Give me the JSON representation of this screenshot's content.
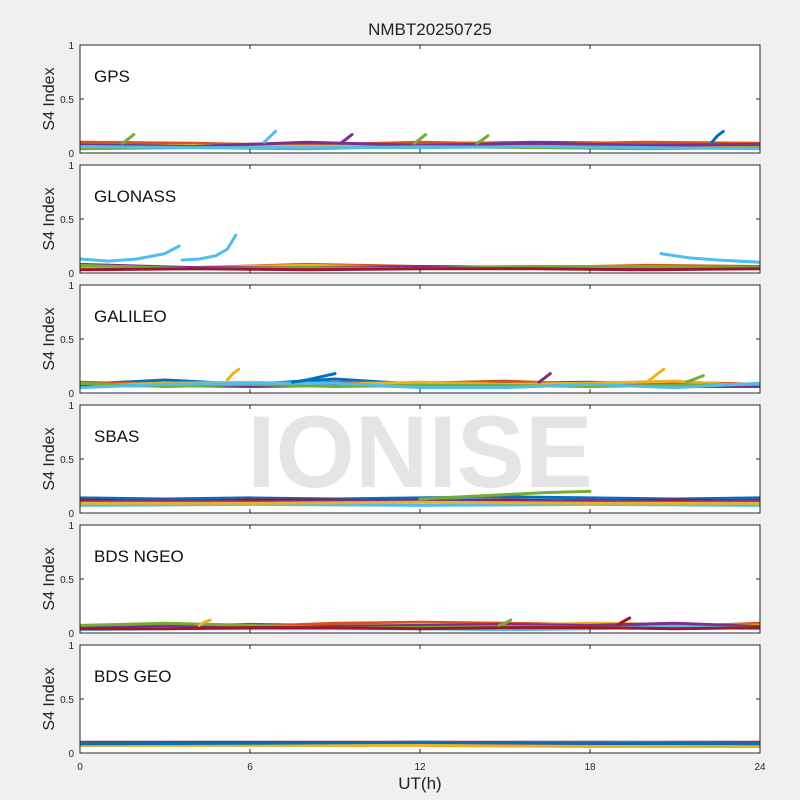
{
  "figure": {
    "title": "NMBT20250725",
    "xlabel": "UT(h)",
    "watermark": "IONISE",
    "x_ticks": [
      0,
      6,
      12,
      18,
      24
    ],
    "xlim": [
      0,
      24
    ],
    "colors": [
      "#0072bd",
      "#d95319",
      "#edb120",
      "#7e2f8e",
      "#77ac30",
      "#4dbeee",
      "#a2142f"
    ]
  },
  "chart_data": [
    {
      "type": "line",
      "panel_label": "GPS",
      "ylabel": "S4 Index",
      "ylim": [
        0,
        1
      ],
      "y_ticks": [
        0,
        0.5,
        1
      ],
      "series": [
        {
          "color_index": 0,
          "x": [
            0,
            4,
            8,
            12,
            16,
            20,
            24
          ],
          "y": [
            0.08,
            0.07,
            0.09,
            0.08,
            0.1,
            0.09,
            0.08
          ]
        },
        {
          "color_index": 1,
          "x": [
            0,
            4,
            8,
            12,
            16,
            20,
            24
          ],
          "y": [
            0.1,
            0.09,
            0.07,
            0.1,
            0.08,
            0.1,
            0.09
          ]
        },
        {
          "color_index": 2,
          "x": [
            0,
            4,
            8,
            12,
            16,
            20,
            24
          ],
          "y": [
            0.05,
            0.07,
            0.06,
            0.07,
            0.06,
            0.06,
            0.05
          ]
        },
        {
          "color_index": 3,
          "x": [
            0,
            4,
            8,
            12,
            16,
            20,
            24
          ],
          "y": [
            0.07,
            0.06,
            0.1,
            0.07,
            0.09,
            0.07,
            0.08
          ]
        },
        {
          "color_index": 4,
          "x": [
            0,
            4,
            8,
            12,
            16,
            20,
            24
          ],
          "y": [
            0.04,
            0.05,
            0.04,
            0.06,
            0.05,
            0.04,
            0.05
          ]
        },
        {
          "color_index": 5,
          "x": [
            0,
            4,
            8,
            12,
            16,
            20,
            24
          ],
          "y": [
            0.06,
            0.05,
            0.05,
            0.05,
            0.06,
            0.05,
            0.04
          ]
        },
        {
          "color_index": 0,
          "x": [
            22.3,
            22.5,
            22.7
          ],
          "y": [
            0.1,
            0.16,
            0.2
          ]
        },
        {
          "color_index": 5,
          "x": [
            6.5,
            6.7,
            6.9
          ],
          "y": [
            0.1,
            0.15,
            0.2
          ]
        },
        {
          "color_index": 4,
          "x": [
            1.5,
            1.7,
            1.9
          ],
          "y": [
            0.09,
            0.13,
            0.17
          ]
        },
        {
          "color_index": 3,
          "x": [
            9.2,
            9.4,
            9.6
          ],
          "y": [
            0.09,
            0.13,
            0.17
          ]
        },
        {
          "color_index": 4,
          "x": [
            11.8,
            12.0,
            12.2
          ],
          "y": [
            0.09,
            0.13,
            0.17
          ]
        },
        {
          "color_index": 4,
          "x": [
            14.0,
            14.2,
            14.4
          ],
          "y": [
            0.09,
            0.12,
            0.16
          ]
        }
      ]
    },
    {
      "type": "line",
      "panel_label": "GLONASS",
      "ylabel": "S4 Index",
      "ylim": [
        0,
        1
      ],
      "y_ticks": [
        0,
        0.5,
        1
      ],
      "series": [
        {
          "color_index": 5,
          "x": [
            0,
            1,
            2,
            3,
            3.5
          ],
          "y": [
            0.13,
            0.11,
            0.13,
            0.18,
            0.25
          ]
        },
        {
          "color_index": 5,
          "x": [
            3.6,
            4.2,
            4.8,
            5.2,
            5.5
          ],
          "y": [
            0.12,
            0.13,
            0.16,
            0.22,
            0.35
          ]
        },
        {
          "color_index": 5,
          "x": [
            20.5,
            21.5,
            22.5,
            24
          ],
          "y": [
            0.18,
            0.14,
            0.12,
            0.1
          ]
        },
        {
          "color_index": 0,
          "x": [
            0,
            4,
            8,
            12,
            16,
            20,
            24
          ],
          "y": [
            0.05,
            0.04,
            0.06,
            0.05,
            0.06,
            0.05,
            0.05
          ]
        },
        {
          "color_index": 1,
          "x": [
            0,
            4,
            8,
            12,
            16,
            20,
            24
          ],
          "y": [
            0.06,
            0.05,
            0.08,
            0.06,
            0.05,
            0.07,
            0.06
          ]
        },
        {
          "color_index": 2,
          "x": [
            0,
            4,
            8,
            12,
            16,
            20,
            24
          ],
          "y": [
            0.04,
            0.05,
            0.07,
            0.05,
            0.06,
            0.05,
            0.04
          ]
        },
        {
          "color_index": 3,
          "x": [
            0,
            4,
            8,
            12,
            16,
            20,
            24
          ],
          "y": [
            0.08,
            0.05,
            0.05,
            0.06,
            0.05,
            0.04,
            0.05
          ]
        },
        {
          "color_index": 4,
          "x": [
            0,
            4,
            8,
            12,
            16,
            20,
            24
          ],
          "y": [
            0.07,
            0.04,
            0.05,
            0.04,
            0.06,
            0.06,
            0.05
          ]
        },
        {
          "color_index": 6,
          "x": [
            0,
            4,
            8,
            12,
            16,
            20,
            24
          ],
          "y": [
            0.03,
            0.04,
            0.03,
            0.04,
            0.04,
            0.03,
            0.04
          ]
        }
      ]
    },
    {
      "type": "line",
      "panel_label": "GALILEO",
      "ylabel": "S4 Index",
      "ylim": [
        0,
        1
      ],
      "y_ticks": [
        0,
        0.5,
        1
      ],
      "series": [
        {
          "color_index": 0,
          "x": [
            0,
            3,
            6,
            9,
            12,
            15,
            18,
            21,
            24
          ],
          "y": [
            0.08,
            0.12,
            0.08,
            0.13,
            0.08,
            0.09,
            0.1,
            0.08,
            0.07
          ]
        },
        {
          "color_index": 1,
          "x": [
            0,
            3,
            6,
            9,
            12,
            15,
            18,
            21,
            24
          ],
          "y": [
            0.1,
            0.08,
            0.07,
            0.1,
            0.09,
            0.11,
            0.08,
            0.1,
            0.08
          ]
        },
        {
          "color_index": 2,
          "x": [
            0,
            3,
            6,
            9,
            12,
            15,
            18,
            21,
            24
          ],
          "y": [
            0.07,
            0.09,
            0.1,
            0.08,
            0.1,
            0.08,
            0.09,
            0.11,
            0.06
          ]
        },
        {
          "color_index": 3,
          "x": [
            0,
            3,
            6,
            9,
            12,
            15,
            18,
            21,
            24
          ],
          "y": [
            0.06,
            0.07,
            0.06,
            0.07,
            0.06,
            0.06,
            0.07,
            0.06,
            0.06
          ]
        },
        {
          "color_index": 4,
          "x": [
            0,
            3,
            6,
            9,
            12,
            15,
            18,
            21,
            24
          ],
          "y": [
            0.09,
            0.06,
            0.08,
            0.06,
            0.07,
            0.07,
            0.06,
            0.07,
            0.08
          ]
        },
        {
          "color_index": 5,
          "x": [
            0,
            3,
            6,
            9,
            12,
            15,
            18,
            21,
            24
          ],
          "y": [
            0.05,
            0.08,
            0.09,
            0.09,
            0.05,
            0.05,
            0.08,
            0.05,
            0.09
          ]
        },
        {
          "color_index": 0,
          "x": [
            7.5,
            8.0,
            8.5,
            9.0
          ],
          "y": [
            0.1,
            0.12,
            0.15,
            0.18
          ]
        },
        {
          "color_index": 2,
          "x": [
            5.2,
            5.4,
            5.6
          ],
          "y": [
            0.12,
            0.18,
            0.22
          ]
        },
        {
          "color_index": 2,
          "x": [
            20.0,
            20.3,
            20.6
          ],
          "y": [
            0.1,
            0.16,
            0.22
          ]
        },
        {
          "color_index": 3,
          "x": [
            16.2,
            16.4,
            16.6
          ],
          "y": [
            0.1,
            0.14,
            0.18
          ]
        },
        {
          "color_index": 4,
          "x": [
            21.4,
            21.7,
            22.0
          ],
          "y": [
            0.1,
            0.13,
            0.16
          ]
        }
      ]
    },
    {
      "type": "line",
      "panel_label": "SBAS",
      "ylabel": "S4 Index",
      "ylim": [
        0,
        1
      ],
      "y_ticks": [
        0,
        0.5,
        1
      ],
      "series": [
        {
          "color_index": 0,
          "x": [
            0,
            3,
            6,
            9,
            12,
            15,
            18,
            21,
            24
          ],
          "y": [
            0.14,
            0.13,
            0.14,
            0.13,
            0.14,
            0.15,
            0.14,
            0.13,
            0.14
          ]
        },
        {
          "color_index": 6,
          "x": [
            0,
            3,
            6,
            9,
            12,
            15,
            18,
            21,
            24
          ],
          "y": [
            0.12,
            0.11,
            0.12,
            0.12,
            0.11,
            0.12,
            0.11,
            0.12,
            0.11
          ]
        },
        {
          "color_index": 3,
          "x": [
            0,
            3,
            6,
            9,
            12,
            15,
            18,
            21,
            24
          ],
          "y": [
            0.1,
            0.12,
            0.1,
            0.11,
            0.12,
            0.1,
            0.12,
            0.1,
            0.12
          ]
        },
        {
          "color_index": 4,
          "x": [
            12,
            13.5,
            15,
            16.5,
            18
          ],
          "y": [
            0.13,
            0.15,
            0.17,
            0.19,
            0.2
          ]
        },
        {
          "color_index": 5,
          "x": [
            0,
            6,
            12,
            18,
            24
          ],
          "y": [
            0.07,
            0.08,
            0.07,
            0.08,
            0.07
          ]
        },
        {
          "color_index": 2,
          "x": [
            0,
            6,
            12,
            18,
            24
          ],
          "y": [
            0.09,
            0.09,
            0.1,
            0.09,
            0.09
          ]
        }
      ]
    },
    {
      "type": "line",
      "panel_label": "BDS NGEO",
      "ylabel": "S4 Index",
      "ylim": [
        0,
        1
      ],
      "y_ticks": [
        0,
        0.5,
        1
      ],
      "series": [
        {
          "color_index": 0,
          "x": [
            0,
            3,
            6,
            9,
            12,
            15,
            18,
            21,
            24
          ],
          "y": [
            0.05,
            0.06,
            0.08,
            0.07,
            0.06,
            0.07,
            0.06,
            0.07,
            0.06
          ]
        },
        {
          "color_index": 1,
          "x": [
            0,
            3,
            6,
            9,
            12,
            15,
            18,
            21,
            24
          ],
          "y": [
            0.06,
            0.05,
            0.06,
            0.09,
            0.1,
            0.09,
            0.08,
            0.06,
            0.09
          ]
        },
        {
          "color_index": 2,
          "x": [
            0,
            3,
            6,
            9,
            12,
            15,
            18,
            21,
            24
          ],
          "y": [
            0.04,
            0.05,
            0.05,
            0.06,
            0.08,
            0.07,
            0.09,
            0.08,
            0.07
          ]
        },
        {
          "color_index": 3,
          "x": [
            0,
            3,
            6,
            9,
            12,
            15,
            18,
            21,
            24
          ],
          "y": [
            0.05,
            0.07,
            0.06,
            0.06,
            0.07,
            0.08,
            0.07,
            0.09,
            0.06
          ]
        },
        {
          "color_index": 4,
          "x": [
            0,
            3,
            6,
            9,
            12,
            15,
            18,
            21,
            24
          ],
          "y": [
            0.07,
            0.09,
            0.07,
            0.05,
            0.05,
            0.06,
            0.05,
            0.05,
            0.05
          ]
        },
        {
          "color_index": 5,
          "x": [
            0,
            3,
            6,
            9,
            12,
            15,
            18,
            21,
            24
          ],
          "y": [
            0.03,
            0.04,
            0.04,
            0.04,
            0.04,
            0.03,
            0.04,
            0.06,
            0.04
          ]
        },
        {
          "color_index": 6,
          "x": [
            0,
            3,
            6,
            9,
            12,
            15,
            18,
            21,
            24
          ],
          "y": [
            0.04,
            0.04,
            0.05,
            0.05,
            0.04,
            0.05,
            0.05,
            0.04,
            0.05
          ]
        },
        {
          "color_index": 6,
          "x": [
            19.0,
            19.2,
            19.4
          ],
          "y": [
            0.08,
            0.11,
            0.14
          ]
        },
        {
          "color_index": 2,
          "x": [
            4.2,
            4.4,
            4.6
          ],
          "y": [
            0.07,
            0.1,
            0.12
          ]
        },
        {
          "color_index": 4,
          "x": [
            14.8,
            15.0,
            15.2
          ],
          "y": [
            0.07,
            0.09,
            0.12
          ]
        }
      ]
    },
    {
      "type": "line",
      "panel_label": "BDS GEO",
      "ylabel": "S4 Index",
      "ylim": [
        0,
        1
      ],
      "y_ticks": [
        0,
        0.5,
        1
      ],
      "series": [
        {
          "color_index": 6,
          "x": [
            0,
            6,
            12,
            18,
            24
          ],
          "y": [
            0.1,
            0.1,
            0.1,
            0.1,
            0.1
          ]
        },
        {
          "color_index": 1,
          "x": [
            0,
            6,
            12,
            18,
            24
          ],
          "y": [
            0.09,
            0.09,
            0.09,
            0.1,
            0.09
          ]
        },
        {
          "color_index": 3,
          "x": [
            0,
            6,
            12,
            18,
            24
          ],
          "y": [
            0.08,
            0.08,
            0.08,
            0.08,
            0.08
          ]
        },
        {
          "color_index": 2,
          "x": [
            0,
            6,
            12,
            18,
            24
          ],
          "y": [
            0.07,
            0.07,
            0.07,
            0.06,
            0.06
          ]
        },
        {
          "color_index": 0,
          "x": [
            0,
            6,
            12,
            18,
            24
          ],
          "y": [
            0.085,
            0.09,
            0.1,
            0.09,
            0.085
          ]
        }
      ]
    }
  ]
}
